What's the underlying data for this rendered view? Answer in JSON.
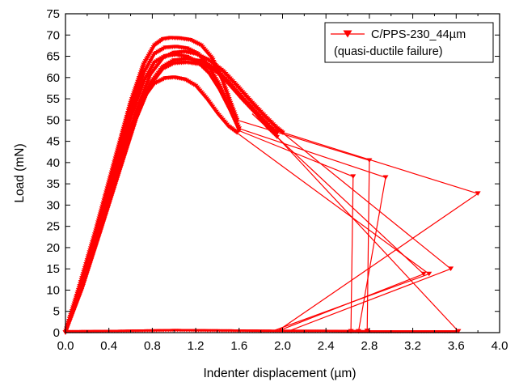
{
  "chart_data": {
    "type": "line",
    "xlabel": "Indenter displacement (µm)",
    "ylabel": "Load (mN)",
    "xlim": [
      0.0,
      4.0
    ],
    "ylim": [
      0,
      75
    ],
    "xticks": [
      "0.0",
      "0.4",
      "0.8",
      "1.2",
      "1.6",
      "2.0",
      "2.4",
      "2.8",
      "3.2",
      "3.6",
      "4.0"
    ],
    "yticks": [
      "0",
      "5",
      "10",
      "15",
      "20",
      "25",
      "30",
      "35",
      "40",
      "45",
      "50",
      "55",
      "60",
      "65",
      "70",
      "75"
    ],
    "grid": false,
    "legend_position": "top-right",
    "series_color": "#ff0000",
    "marker": "down-triangle",
    "legend": {
      "label": "C/PPS-230_44µm",
      "note": "(quasi-ductile failure)"
    },
    "series": [
      {
        "loading_curves": [
          {
            "x": [
              0.0,
              0.12,
              0.28,
              0.45,
              0.6,
              0.72,
              0.82,
              0.9,
              0.97,
              1.05,
              1.15,
              1.25,
              1.35,
              1.45,
              1.52,
              1.58
            ],
            "y": [
              0,
              10,
              24,
              40,
              54,
              63,
              67.5,
              69,
              69.3,
              69.2,
              68.8,
              67.5,
              64.5,
              59,
              54,
              50
            ]
          },
          {
            "x": [
              0.0,
              0.12,
              0.28,
              0.45,
              0.6,
              0.72,
              0.82,
              0.92,
              1.02,
              1.12,
              1.22,
              1.32,
              1.42,
              1.52,
              1.6
            ],
            "y": [
              0,
              9.5,
              23,
              38.5,
              52,
              61,
              65.5,
              67,
              67.2,
              66.8,
              65.5,
              62.5,
              58,
              52.5,
              48
            ]
          },
          {
            "x": [
              0.0,
              0.12,
              0.28,
              0.45,
              0.6,
              0.72,
              0.82,
              0.92,
              1.02,
              1.12,
              1.22,
              1.32,
              1.42,
              1.52,
              1.6
            ],
            "y": [
              0,
              9.5,
              22.5,
              37.5,
              50.5,
              59,
              63.5,
              65,
              65.3,
              64.8,
              63.5,
              61,
              57,
              52,
              47.5
            ]
          },
          {
            "x": [
              0.0,
              0.12,
              0.28,
              0.45,
              0.6,
              0.72,
              0.82,
              0.92,
              1.0,
              1.1,
              1.2,
              1.3,
              1.4,
              1.5,
              1.58
            ],
            "y": [
              0,
              9,
              21.5,
              35.5,
              47.5,
              55,
              58.5,
              59.8,
              60,
              59.5,
              58,
              55,
              51.5,
              48.5,
              47
            ]
          },
          {
            "x": [
              0.0,
              0.15,
              0.32,
              0.5,
              0.65,
              0.78,
              0.9,
              1.0,
              1.1,
              1.2,
              1.32,
              1.45,
              1.58,
              1.72,
              1.85,
              1.95,
              2.0
            ],
            "y": [
              0,
              10.5,
              24.5,
              39.5,
              52,
              60.5,
              64.5,
              65.8,
              66,
              65.5,
              64,
              61.5,
              58,
              54,
              50.5,
              48,
              47
            ]
          },
          {
            "x": [
              0.0,
              0.15,
              0.32,
              0.5,
              0.65,
              0.78,
              0.9,
              1.0,
              1.12,
              1.25,
              1.38,
              1.5,
              1.62,
              1.75,
              1.88,
              1.95
            ],
            "y": [
              0,
              10.3,
              24,
              38.5,
              50.5,
              58.5,
              62.5,
              64,
              64.3,
              63.8,
              62,
              59,
              55.5,
              52,
              48.5,
              47
            ]
          },
          {
            "x": [
              0.0,
              0.15,
              0.32,
              0.5,
              0.65,
              0.78,
              0.9,
              1.0,
              1.12,
              1.25,
              1.38,
              1.5,
              1.62,
              1.75,
              1.85,
              1.95
            ],
            "y": [
              0,
              10,
              23.5,
              38,
              50,
              58,
              62,
              63.3,
              63.5,
              63,
              61.5,
              58.5,
              55,
              51.5,
              48.5,
              46
            ]
          }
        ],
        "failure_jumps": [
          {
            "x": [
              1.58,
              2.8,
              2.78,
              1.78
            ],
            "y": [
              50,
              40.5,
              0.4,
              0.3
            ]
          },
          {
            "x": [
              1.6,
              2.95,
              2.7,
              1.85
            ],
            "y": [
              48,
              36.5,
              0.3,
              0.3
            ]
          },
          {
            "x": [
              1.6,
              2.65,
              2.63,
              1.7
            ],
            "y": [
              47.5,
              36.7,
              0.3,
              0.3
            ]
          },
          {
            "x": [
              1.58,
              3.35,
              1.9
            ],
            "y": [
              47,
              13.8,
              0.3
            ]
          },
          {
            "x": [
              2.0,
              3.55,
              2.05
            ],
            "y": [
              47,
              15,
              0.3
            ]
          },
          {
            "x": [
              1.95,
              3.62,
              3.6
            ],
            "y": [
              46,
              0.3,
              0.3
            ]
          },
          {
            "x": [
              1.95,
              3.8,
              1.95
            ],
            "y": [
              47.5,
              32.7,
              0.3
            ]
          },
          {
            "x": [
              1.72,
              3.3,
              1.95
            ],
            "y": [
              51.5,
              13.8,
              0.3
            ]
          }
        ],
        "baseline": {
          "x": [
            0.0,
            0.5,
            1.0,
            1.5,
            2.0,
            2.4,
            2.8,
            3.2,
            3.6
          ],
          "y": [
            0.2,
            0.3,
            0.5,
            0.4,
            0.3,
            0.3,
            0.2,
            0.2,
            0.2
          ]
        }
      }
    ]
  }
}
